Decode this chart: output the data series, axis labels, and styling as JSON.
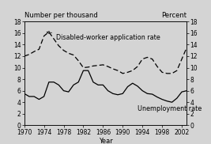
{
  "years": [
    1970,
    1971,
    1972,
    1973,
    1974,
    1975,
    1976,
    1977,
    1978,
    1979,
    1980,
    1981,
    1982,
    1983,
    1984,
    1985,
    1986,
    1987,
    1988,
    1989,
    1990,
    1991,
    1992,
    1993,
    1994,
    1995,
    1996,
    1997,
    1998,
    1999,
    2000,
    2001,
    2002,
    2003
  ],
  "disabled_worker": [
    12.0,
    12.3,
    12.8,
    13.2,
    15.5,
    16.2,
    15.0,
    13.8,
    13.0,
    12.5,
    12.2,
    11.2,
    10.0,
    10.1,
    10.3,
    10.4,
    10.5,
    10.2,
    9.8,
    9.5,
    9.0,
    9.2,
    9.5,
    10.2,
    11.5,
    11.8,
    11.5,
    10.2,
    9.2,
    9.0,
    9.0,
    9.5,
    11.5,
    13.5
  ],
  "unemployment": [
    5.5,
    5.0,
    5.0,
    4.5,
    5.0,
    7.5,
    7.5,
    7.0,
    6.0,
    5.8,
    7.0,
    7.5,
    9.5,
    9.5,
    7.5,
    7.0,
    7.0,
    6.0,
    5.5,
    5.3,
    5.5,
    6.7,
    7.3,
    6.8,
    6.0,
    5.5,
    5.4,
    4.9,
    4.5,
    4.2,
    4.0,
    4.7,
    5.8,
    6.0
  ],
  "ylim": [
    0,
    18
  ],
  "yticks": [
    0,
    2,
    4,
    6,
    8,
    10,
    12,
    14,
    16,
    18
  ],
  "xlim": [
    1970,
    2003
  ],
  "xticks": [
    1970,
    1974,
    1978,
    1982,
    1986,
    1990,
    1994,
    1998,
    2002
  ],
  "xlabel": "Year",
  "ylabel_left": "Number per thousand",
  "ylabel_right": "Percent",
  "label_disabled": "Disabled-worker application rate",
  "label_unemployment": "Unemployment rate",
  "bg_color": "#d4d4d4",
  "line_color": "#000000",
  "tick_fontsize": 5.5,
  "label_fontsize": 6.0,
  "annot_fontsize": 5.8
}
